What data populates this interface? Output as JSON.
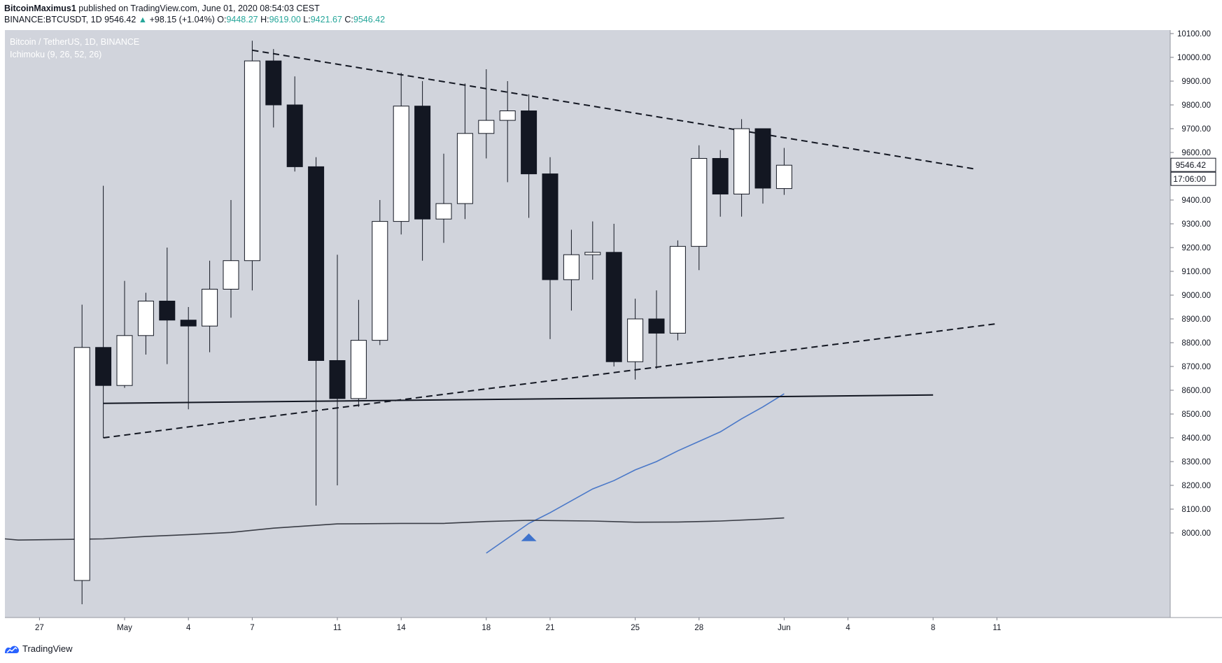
{
  "header": {
    "author": "BitcoinMaximus1",
    "published_text": " published on TradingView.com, June 01, 2020 08:54:03 CEST",
    "symbol": "BINANCE:BTCUSDT, 1D",
    "last": "9546.42",
    "change": "+98.15 (+1.04%)",
    "o_label": "O:",
    "o_value": "9448.27",
    "h_label": "H:",
    "h_value": "9619.00",
    "l_label": "L:",
    "l_value": "9421.67",
    "c_label": "C:",
    "c_value": "9546.42"
  },
  "legend": {
    "title": "Bitcoin / TetherUS, 1D, BINANCE",
    "indicator": "Ichimoku (9, 26, 52, 26)"
  },
  "price_label": "9546.42",
  "countdown_label": "17:06:00",
  "footer": {
    "brand": "TradingView"
  },
  "colors": {
    "background": "#d1d4dc",
    "bull_body": "#ffffff",
    "bear_body": "#131722",
    "wick": "#131722",
    "ichimoku_blue": "#4a78c8",
    "ichimoku_dark": "#3a3d46",
    "marker": "#3f73cc"
  },
  "chart_data": {
    "type": "candlestick",
    "title": "Bitcoin / TetherUS, 1D, BINANCE",
    "ylim": [
      7900,
      10200
    ],
    "y_ticks": [
      8000,
      8100,
      8200,
      8300,
      8400,
      8500,
      8600,
      8700,
      8800,
      8900,
      9000,
      9100,
      9200,
      9300,
      9400,
      9500,
      9600,
      9700,
      9800,
      9900,
      10000,
      10100
    ],
    "x_ticks": [
      {
        "label": "27",
        "day": -4
      },
      {
        "label": "May",
        "day": 0
      },
      {
        "label": "4",
        "day": 3
      },
      {
        "label": "7",
        "day": 6
      },
      {
        "label": "11",
        "day": 10
      },
      {
        "label": "14",
        "day": 13
      },
      {
        "label": "18",
        "day": 17
      },
      {
        "label": "21",
        "day": 20
      },
      {
        "label": "25",
        "day": 24
      },
      {
        "label": "28",
        "day": 27
      },
      {
        "label": "Jun",
        "day": 31
      },
      {
        "label": "4",
        "day": 34
      },
      {
        "label": "8",
        "day": 38
      },
      {
        "label": "11",
        "day": 41
      }
    ],
    "candles": [
      {
        "d": -2,
        "o": 7800,
        "h": 8960,
        "l": 7700,
        "c": 8780
      },
      {
        "d": -1,
        "o": 8780,
        "h": 9460,
        "l": 8400,
        "c": 8620
      },
      {
        "d": 0,
        "o": 8620,
        "h": 9060,
        "l": 8610,
        "c": 8830
      },
      {
        "d": 1,
        "o": 8830,
        "h": 9010,
        "l": 8750,
        "c": 8975
      },
      {
        "d": 2,
        "o": 8975,
        "h": 9200,
        "l": 8710,
        "c": 8895
      },
      {
        "d": 3,
        "o": 8895,
        "h": 8950,
        "l": 8520,
        "c": 8870
      },
      {
        "d": 4,
        "o": 8870,
        "h": 9145,
        "l": 8760,
        "c": 9025
      },
      {
        "d": 5,
        "o": 9025,
        "h": 9400,
        "l": 8905,
        "c": 9145
      },
      {
        "d": 6,
        "o": 9145,
        "h": 10070,
        "l": 9020,
        "c": 9985
      },
      {
        "d": 7,
        "o": 9985,
        "h": 10035,
        "l": 9705,
        "c": 9800
      },
      {
        "d": 8,
        "o": 9800,
        "h": 9920,
        "l": 9520,
        "c": 9540
      },
      {
        "d": 9,
        "o": 9540,
        "h": 9580,
        "l": 8115,
        "c": 8725
      },
      {
        "d": 10,
        "o": 8725,
        "h": 9170,
        "l": 8200,
        "c": 8565
      },
      {
        "d": 11,
        "o": 8565,
        "h": 8980,
        "l": 8530,
        "c": 8810
      },
      {
        "d": 12,
        "o": 8810,
        "h": 9400,
        "l": 8790,
        "c": 9310
      },
      {
        "d": 13,
        "o": 9310,
        "h": 9935,
        "l": 9255,
        "c": 9795
      },
      {
        "d": 14,
        "o": 9795,
        "h": 9900,
        "l": 9145,
        "c": 9320
      },
      {
        "d": 15,
        "o": 9320,
        "h": 9595,
        "l": 9220,
        "c": 9385
      },
      {
        "d": 16,
        "o": 9385,
        "h": 9890,
        "l": 9320,
        "c": 9680
      },
      {
        "d": 17,
        "o": 9680,
        "h": 9950,
        "l": 9575,
        "c": 9735
      },
      {
        "d": 18,
        "o": 9735,
        "h": 9900,
        "l": 9475,
        "c": 9775
      },
      {
        "d": 19,
        "o": 9775,
        "h": 9845,
        "l": 9325,
        "c": 9510
      },
      {
        "d": 20,
        "o": 9510,
        "h": 9580,
        "l": 8815,
        "c": 9065
      },
      {
        "d": 21,
        "o": 9065,
        "h": 9275,
        "l": 8935,
        "c": 9170
      },
      {
        "d": 22,
        "o": 9170,
        "h": 9310,
        "l": 9065,
        "c": 9180
      },
      {
        "d": 23,
        "o": 9180,
        "h": 9300,
        "l": 8700,
        "c": 8720
      },
      {
        "d": 24,
        "o": 8720,
        "h": 8985,
        "l": 8645,
        "c": 8900
      },
      {
        "d": 25,
        "o": 8900,
        "h": 9020,
        "l": 8690,
        "c": 8840
      },
      {
        "d": 26,
        "o": 8840,
        "h": 9230,
        "l": 8810,
        "c": 9205
      },
      {
        "d": 27,
        "o": 9205,
        "h": 9630,
        "l": 9105,
        "c": 9575
      },
      {
        "d": 28,
        "o": 9575,
        "h": 9610,
        "l": 9330,
        "c": 9425
      },
      {
        "d": 29,
        "o": 9425,
        "h": 9740,
        "l": 9330,
        "c": 9700
      },
      {
        "d": 30,
        "o": 9700,
        "h": 9700,
        "l": 9385,
        "c": 9450
      },
      {
        "d": 31,
        "o": 9448.27,
        "h": 9619.0,
        "l": 9421.67,
        "c": 9546.42
      }
    ],
    "trendlines": [
      {
        "name": "upper-resistance",
        "style": "dashed",
        "from": {
          "d": 6,
          "v": 10030
        },
        "to": {
          "d": 40,
          "v": 9530
        }
      },
      {
        "name": "lower-support",
        "style": "dashed",
        "from": {
          "d": -1,
          "v": 8400
        },
        "to": {
          "d": 41,
          "v": 8880
        }
      },
      {
        "name": "horizontal-support",
        "style": "solid",
        "from": {
          "d": -1,
          "v": 8545
        },
        "to": {
          "d": 38,
          "v": 8580
        }
      }
    ],
    "ichimoku_lines": [
      {
        "name": "blue-line",
        "points": [
          [
            17,
            7915
          ],
          [
            19,
            8040
          ],
          [
            20,
            8085
          ],
          [
            22,
            8185
          ],
          [
            23,
            8220
          ],
          [
            24,
            8265
          ],
          [
            25,
            8300
          ],
          [
            26,
            8345
          ],
          [
            27,
            8385
          ],
          [
            28,
            8425
          ],
          [
            29,
            8480
          ],
          [
            30,
            8530
          ],
          [
            31,
            8585
          ]
        ]
      },
      {
        "name": "dark-line",
        "points": [
          [
            -7,
            7975
          ],
          [
            -5,
            7970
          ],
          [
            -1,
            7975
          ],
          [
            1,
            7985
          ],
          [
            3,
            7993
          ],
          [
            5,
            8002
          ],
          [
            7,
            8020
          ],
          [
            10,
            8038
          ],
          [
            13,
            8040
          ],
          [
            15,
            8040
          ],
          [
            17,
            8048
          ],
          [
            19,
            8053
          ],
          [
            22,
            8050
          ],
          [
            24,
            8045
          ],
          [
            26,
            8046
          ],
          [
            28,
            8050
          ],
          [
            30,
            8058
          ],
          [
            31,
            8063
          ]
        ]
      }
    ],
    "marker": {
      "d": 19,
      "v": 7980,
      "shape": "triangle-up"
    },
    "current_price": 9546.42
  }
}
